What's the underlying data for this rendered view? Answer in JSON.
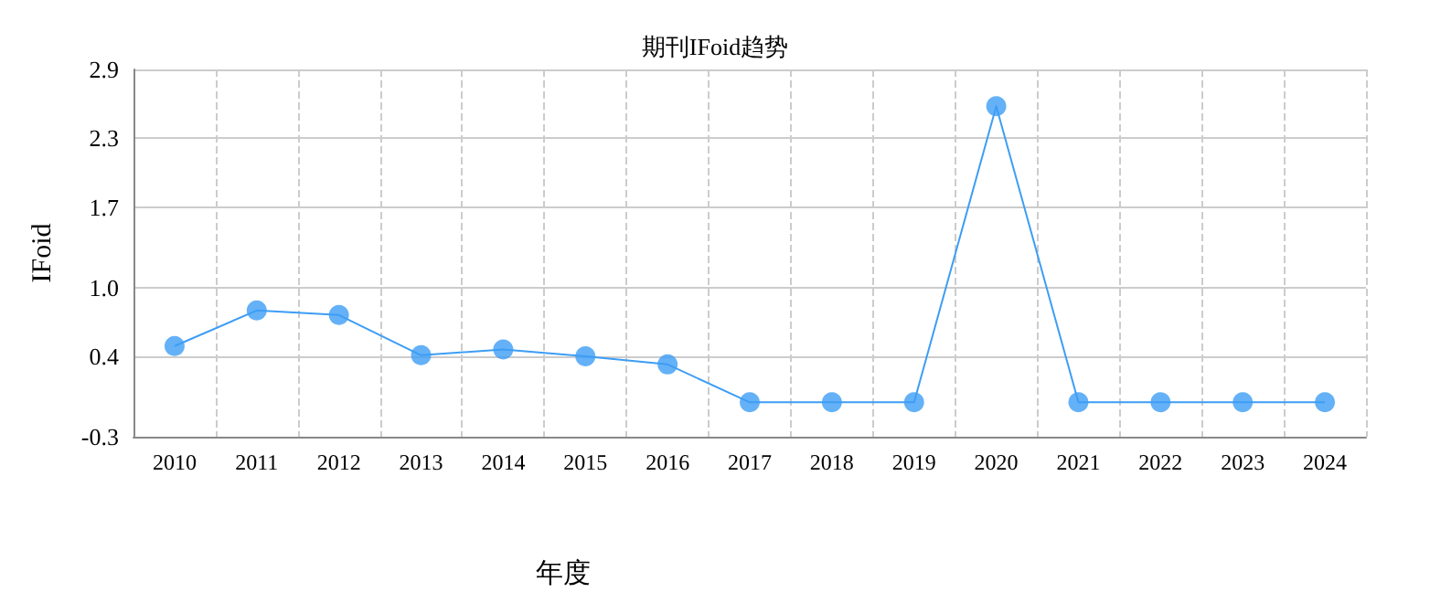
{
  "chart_data": {
    "type": "line",
    "title": "期刊IFoid趋势",
    "xlabel": "年度",
    "ylabel": "IFoid",
    "categories": [
      "2010",
      "2011",
      "2012",
      "2013",
      "2014",
      "2015",
      "2016",
      "2017",
      "2018",
      "2019",
      "2020",
      "2021",
      "2022",
      "2023",
      "2024"
    ],
    "series": [
      {
        "color": "#3d9df5",
        "values": [
          0.49,
          0.8,
          0.76,
          0.41,
          0.46,
          0.4,
          0.33,
          0,
          0,
          0,
          2.58,
          0,
          0,
          0,
          0
        ]
      }
    ],
    "ylim": [
      -0.3,
      2.9
    ],
    "yticks": [
      -0.3,
      0.4,
      {
        "value": 1.0,
        "label": "1.0"
      },
      1.7,
      2.3,
      2.9
    ],
    "grid": true,
    "marker": "circle",
    "line_style": "solid"
  }
}
